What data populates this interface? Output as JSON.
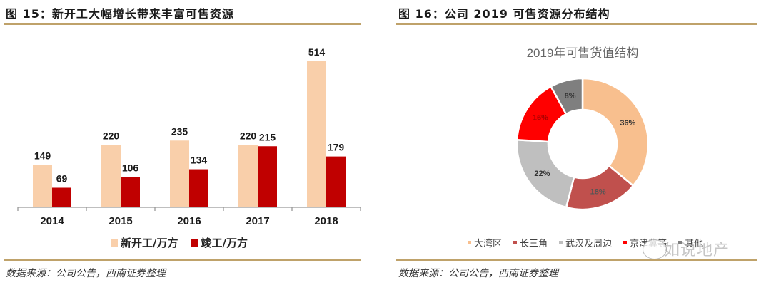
{
  "left_figure": {
    "title": "图 15：新开工大幅增长带来丰富可售资源",
    "source": "数据来源：公司公告，西南证券整理"
  },
  "right_figure": {
    "title": "图 16：公司 2019 可售资源分布结构",
    "source": "数据来源：公司公告，西南证券整理"
  },
  "watermark": "如说地产",
  "chart_data": [
    {
      "type": "bar",
      "title": "新开工大幅增长带来丰富可售资源",
      "categories": [
        "2014",
        "2015",
        "2016",
        "2017",
        "2018"
      ],
      "series": [
        {
          "name": "新开工/万方",
          "color": "#f9cfaa",
          "values": [
            149,
            220,
            235,
            220,
            514
          ]
        },
        {
          "name": "竣工/万方",
          "color": "#c00000",
          "values": [
            69,
            106,
            134,
            215,
            179
          ]
        }
      ],
      "xlabel": "",
      "ylabel": "",
      "ylim": [
        0,
        560
      ],
      "grid": false,
      "data_labels": true,
      "legend_position": "bottom"
    },
    {
      "type": "pie",
      "donut": true,
      "title": "2019年可售货值结构",
      "categories": [
        "大湾区",
        "长三角",
        "武汉及周边",
        "京津冀等",
        "其他"
      ],
      "values": [
        36,
        18,
        22,
        16,
        8
      ],
      "labels": [
        "36%",
        "18%",
        "22%",
        "16%",
        "8%"
      ],
      "colors": [
        "#f8bf8e",
        "#c0504d",
        "#bfbfbf",
        "#ff0000",
        "#7f7f7f"
      ],
      "legend_position": "bottom"
    }
  ]
}
